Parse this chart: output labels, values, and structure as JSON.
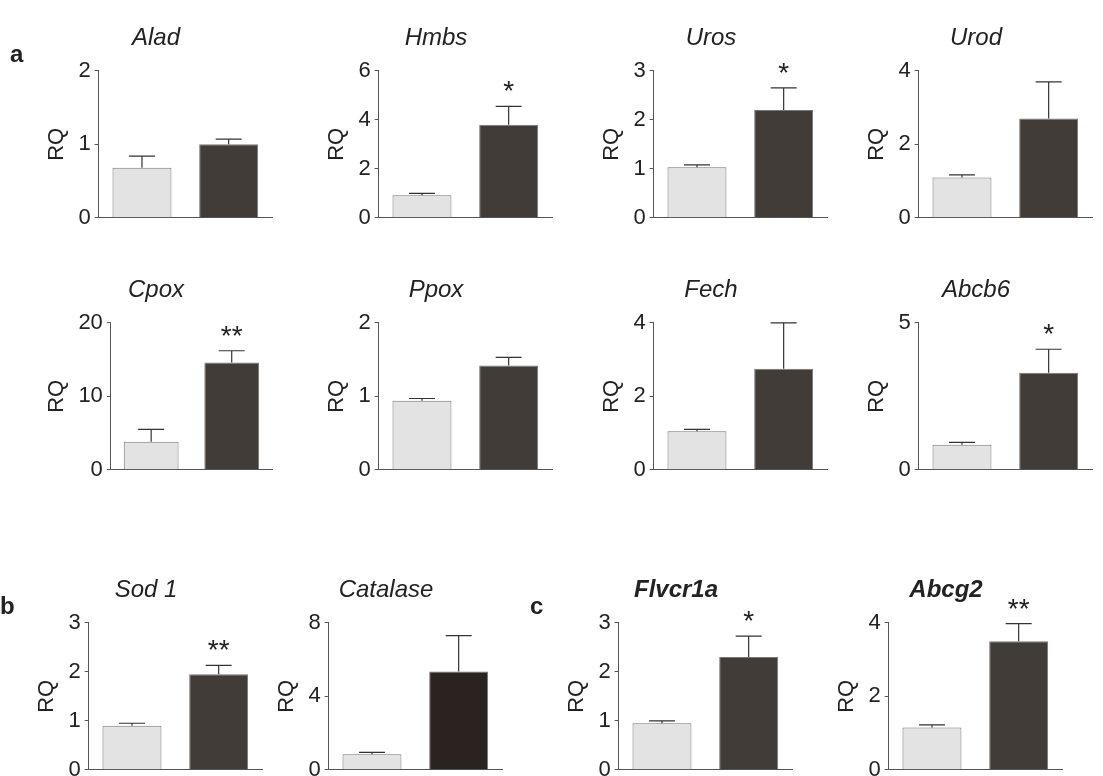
{
  "chart_data": [
    {
      "type": "bar",
      "title": "Alad",
      "ylabel": "RQ",
      "categories": [
        null,
        null
      ],
      "values": [
        0.68,
        1.0
      ],
      "colors": [
        "#e3e3e3",
        "#413c37"
      ],
      "errors": [
        [
          0.68,
          0.84
        ],
        [
          1.0,
          1.07
        ]
      ],
      "ylim": [
        0,
        2
      ],
      "yticks": [
        0,
        1,
        2
      ],
      "tick_labels": "y",
      "annotations": [
        "a"
      ]
    },
    {
      "type": "bar",
      "title": "Hmbs",
      "ylabel": "RQ",
      "categories": [
        null,
        null
      ],
      "values": [
        0.92,
        3.8
      ],
      "colors": [
        "#e3e3e3",
        "#413c37"
      ],
      "errors": [
        [
          0.92,
          1.0
        ],
        [
          3.8,
          4.55
        ]
      ],
      "ylim": [
        0,
        6
      ],
      "yticks": [
        0,
        2,
        4,
        6
      ],
      "tick_labels": "y",
      "annotations": [
        {
          "text": "*",
          "y": 4.55
        }
      ]
    },
    {
      "type": "bar",
      "title": "Uros",
      "ylabel": "RQ",
      "categories": [
        null,
        null
      ],
      "values": [
        1.03,
        2.2
      ],
      "colors": [
        "#e3e3e3",
        "#413c37"
      ],
      "errors": [
        [
          1.03,
          1.08
        ],
        [
          2.2,
          2.65
        ]
      ],
      "ylim": [
        0,
        3
      ],
      "yticks": [
        0,
        1,
        2,
        3
      ],
      "tick_labels": "y",
      "annotations": [
        {
          "text": "*",
          "y": 2.65
        }
      ]
    },
    {
      "type": "bar",
      "title": "Urod",
      "ylabel": "RQ",
      "categories": [
        null,
        null
      ],
      "values": [
        1.1,
        2.7
      ],
      "colors": [
        "#e3e3e3",
        "#413c37"
      ],
      "errors": [
        [
          1.1,
          1.17
        ],
        [
          2.7,
          3.7
        ]
      ],
      "ylim": [
        0,
        4
      ],
      "yticks": [
        0,
        2,
        4
      ],
      "tick_labels": "y"
    },
    {
      "type": "bar",
      "title": "Cpox",
      "ylabel": "RQ",
      "categories": [
        null,
        null
      ],
      "values": [
        3.8,
        14.6
      ],
      "colors": [
        "#e3e3e3",
        "#413c37"
      ],
      "errors": [
        [
          3.8,
          5.5
        ],
        [
          14.6,
          16.2
        ]
      ],
      "ylim": [
        0,
        20
      ],
      "yticks": [
        0,
        10,
        20
      ],
      "tick_labels": "y",
      "annotations": [
        {
          "text": "**",
          "y": 16.2
        }
      ]
    },
    {
      "type": "bar",
      "title": "Ppox",
      "ylabel": "RQ",
      "categories": [
        null,
        null
      ],
      "values": [
        0.94,
        1.42
      ],
      "colors": [
        "#e3e3e3",
        "#413c37"
      ],
      "errors": [
        [
          0.94,
          0.97
        ],
        [
          1.42,
          1.53
        ]
      ],
      "ylim": [
        0,
        2
      ],
      "yticks": [
        0,
        1,
        2
      ],
      "tick_labels": "y"
    },
    {
      "type": "bar",
      "title": "Fech",
      "ylabel": "RQ",
      "categories": [
        null,
        null
      ],
      "values": [
        1.05,
        2.75
      ],
      "colors": [
        "#e3e3e3",
        "#413c37"
      ],
      "errors": [
        [
          1.05,
          1.1
        ],
        [
          2.75,
          4.0
        ]
      ],
      "ylim": [
        0,
        4
      ],
      "yticks": [
        0,
        2,
        4
      ],
      "tick_labels": "y"
    },
    {
      "type": "bar",
      "title": "Abcb6",
      "ylabel": "RQ",
      "categories": [
        null,
        null
      ],
      "values": [
        0.85,
        3.3
      ],
      "colors": [
        "#e3e3e3",
        "#413c37"
      ],
      "errors": [
        [
          0.85,
          0.93
        ],
        [
          3.3,
          4.1
        ]
      ],
      "ylim": [
        0,
        5
      ],
      "yticks": [
        0,
        5
      ],
      "tick_labels": "y",
      "annotations": [
        {
          "text": "*",
          "y": 4.1
        }
      ]
    },
    {
      "type": "bar",
      "title": "Sod 1",
      "ylabel": "RQ",
      "categories": [
        null,
        null
      ],
      "values": [
        0.9,
        1.95
      ],
      "colors": [
        "#e3e3e3",
        "#413c37"
      ],
      "errors": [
        [
          0.9,
          0.95
        ],
        [
          1.95,
          2.13
        ]
      ],
      "ylim": [
        0,
        3
      ],
      "yticks": [
        0,
        1,
        2,
        3
      ],
      "tick_labels": "y",
      "annotations": [
        "b",
        {
          "text": "**",
          "y": 2.13
        }
      ]
    },
    {
      "type": "bar",
      "title": "Catalase",
      "ylabel": "RQ",
      "categories": [
        null,
        null
      ],
      "values": [
        0.85,
        5.35
      ],
      "colors": [
        "#e3e3e3",
        "#2a2320"
      ],
      "errors": [
        [
          0.85,
          0.95
        ],
        [
          5.35,
          7.3
        ]
      ],
      "ylim": [
        0,
        8
      ],
      "yticks": [
        0,
        4,
        8
      ],
      "tick_labels": "y"
    },
    {
      "type": "bar",
      "title": "Flvcr1a",
      "ylabel": "RQ",
      "categories": [
        null,
        null
      ],
      "values": [
        0.95,
        2.3
      ],
      "colors": [
        "#e3e3e3",
        "#413c37"
      ],
      "errors": [
        [
          0.95,
          1.0
        ],
        [
          2.3,
          2.73
        ]
      ],
      "ylim": [
        0,
        3
      ],
      "yticks": [
        0,
        1,
        2,
        3
      ],
      "tick_labels": "y",
      "annotations": [
        "c",
        {
          "text": "*",
          "y": 2.73
        }
      ]
    },
    {
      "type": "bar",
      "title": "Abcg2",
      "ylabel": "RQ",
      "categories": [
        null,
        null
      ],
      "values": [
        1.15,
        3.5
      ],
      "colors": [
        "#e3e3e3",
        "#413c37"
      ],
      "errors": [
        [
          1.15,
          1.22
        ],
        [
          3.5,
          3.98
        ]
      ],
      "ylim": [
        0,
        4
      ],
      "yticks": [
        0,
        2,
        4
      ],
      "tick_labels": "y",
      "annotations": [
        {
          "text": "**",
          "y": 3.98
        }
      ]
    }
  ]
}
